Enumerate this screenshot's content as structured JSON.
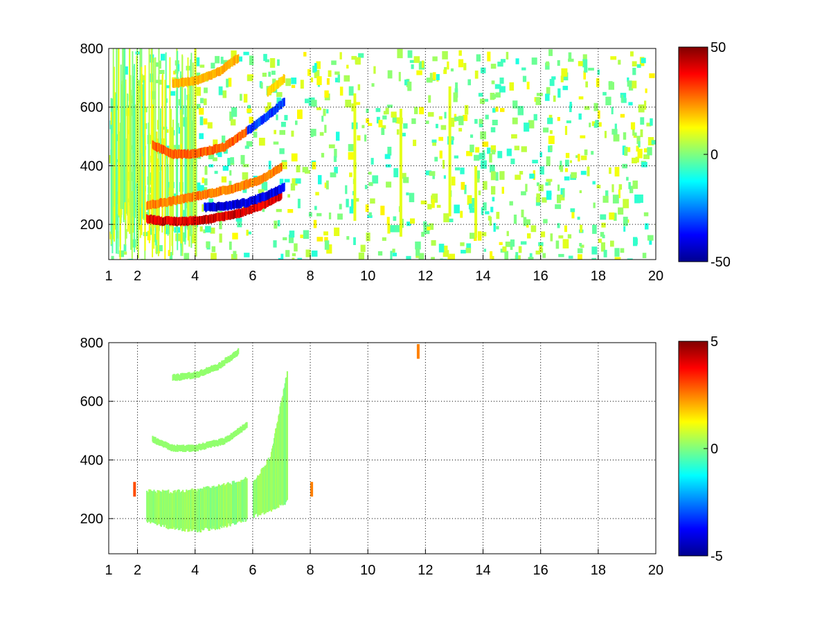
{
  "chart_data": [
    {
      "type": "heatmap",
      "title": "",
      "xlabel": "",
      "ylabel": "",
      "xlim": [
        1,
        20
      ],
      "ylim": [
        80,
        800
      ],
      "xscale": "linear",
      "x_ticks": [
        1,
        2,
        4,
        6,
        8,
        10,
        12,
        14,
        16,
        18,
        20
      ],
      "y_ticks": [
        200,
        400,
        600,
        800
      ],
      "grid": true,
      "colormap": "jet",
      "colorbar": {
        "min": -50,
        "max": 50,
        "ticks": [
          -50,
          0,
          50
        ]
      },
      "background": "#ffffff",
      "features": [
        {
          "kind": "band",
          "x": [
            2.3,
            2.8,
            3.5,
            4.5,
            5.5,
            6.3,
            7.0
          ],
          "y": [
            220,
            212,
            210,
            218,
            238,
            265,
            300
          ],
          "value": 45
        },
        {
          "kind": "band",
          "x": [
            4.3,
            5.0,
            5.8,
            6.5,
            7.1
          ],
          "y": [
            258,
            262,
            275,
            300,
            330
          ],
          "value": -45
        },
        {
          "kind": "band",
          "x": [
            2.3,
            3.2,
            4.2,
            5.2,
            6.2,
            7.0
          ],
          "y": [
            265,
            280,
            300,
            320,
            350,
            395
          ],
          "value": 28
        },
        {
          "kind": "band",
          "x": [
            2.5,
            3.2,
            4.0,
            5.0,
            5.8
          ],
          "y": [
            470,
            440,
            440,
            465,
            520
          ],
          "value": 32
        },
        {
          "kind": "band",
          "x": [
            5.8,
            6.5,
            7.1
          ],
          "y": [
            520,
            570,
            620
          ],
          "value": -35
        },
        {
          "kind": "band",
          "x": [
            3.2,
            4.0,
            4.8,
            5.5
          ],
          "y": [
            680,
            690,
            720,
            770
          ],
          "value": 22
        },
        {
          "kind": "band",
          "x": [
            6.5,
            7.1
          ],
          "y": [
            650,
            700
          ],
          "value": 18
        }
      ]
    },
    {
      "type": "heatmap",
      "title": "",
      "xlabel": "",
      "ylabel": "",
      "xlim": [
        1,
        20
      ],
      "ylim": [
        80,
        800
      ],
      "xscale": "linear",
      "x_ticks": [
        1,
        2,
        4,
        6,
        8,
        10,
        12,
        14,
        16,
        18,
        20
      ],
      "y_ticks": [
        200,
        400,
        600,
        800
      ],
      "grid": true,
      "colormap": "jet",
      "colorbar": {
        "min": -5,
        "max": 5,
        "ticks": [
          -5,
          0,
          5
        ]
      },
      "background": "#ffffff",
      "features": [
        {
          "kind": "region",
          "x_from": 2.3,
          "x_to": 5.8,
          "y_low": [
            180,
            160,
            150,
            165,
            190
          ],
          "y_high": [
            300,
            300,
            305,
            320,
            345
          ],
          "value": 0.2
        },
        {
          "kind": "region",
          "x_from": 6.0,
          "x_to": 7.2,
          "y_low": [
            200,
            220,
            250
          ],
          "y_high": [
            330,
            420,
            720
          ],
          "value": 0.2
        },
        {
          "kind": "band",
          "x": [
            2.5,
            3.2,
            4.0,
            5.0,
            5.8
          ],
          "y": [
            470,
            440,
            440,
            465,
            520
          ],
          "value": 0.2
        },
        {
          "kind": "band",
          "x": [
            3.2,
            4.0,
            4.8,
            5.5
          ],
          "y": [
            680,
            690,
            720,
            770
          ],
          "value": 0.2
        },
        {
          "kind": "point",
          "x": 11.7,
          "y": 770,
          "value": 2.5
        },
        {
          "kind": "point",
          "x": 8.0,
          "y": 300,
          "value": 2.5
        },
        {
          "kind": "point",
          "x": 1.85,
          "y": 300,
          "value": 3.0
        }
      ]
    }
  ]
}
